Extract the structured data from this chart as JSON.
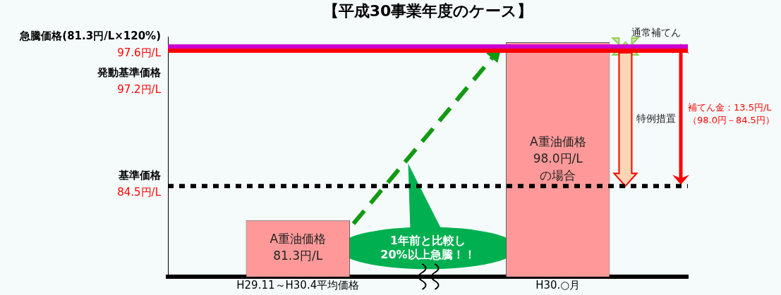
{
  "chart_data": {
    "type": "bar",
    "title": "【平成30事業年度のケース】",
    "categories": [
      "H29.11～H30.4平均価格",
      "H30.○月"
    ],
    "values": [
      81.3,
      98.0
    ],
    "color": "#ff9999",
    "value_labels": [
      "A重油価格\n81.3円/L",
      "A重油価格\n98.0円/L\nの場合"
    ],
    "ylim": [
      76,
      98.5
    ],
    "tick_labels": "x",
    "ref_lines": [
      {
        "axis": "y",
        "value": 97.6,
        "label": "急騰価格(81.3円/L×120%)\n97.6円/L",
        "color": "#cc00cc",
        "line_style": "solid"
      },
      {
        "axis": "y",
        "value": 97.2,
        "label": "発動基準価格\n97.2円/L",
        "color": "#ff0000",
        "line_style": "solid"
      },
      {
        "axis": "y",
        "value": 84.5,
        "label": "基準価格\n84.5円/L",
        "color": "#000000",
        "line_style": "dotted"
      }
    ],
    "annotations": [
      "1年前と比較し\n20%以上急騰！！",
      "通常補てん",
      "特例措置",
      "補てん金：13.5円/L\n（98.0円－84.5円）"
    ]
  }
}
